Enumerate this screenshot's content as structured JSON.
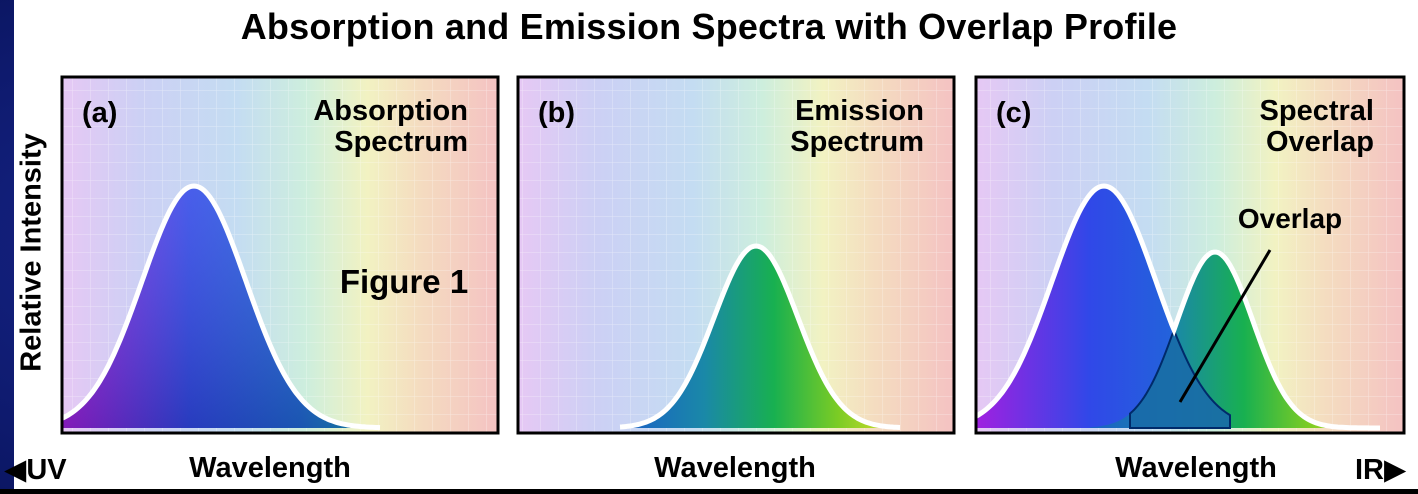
{
  "title": "Absorption and Emission Spectra with Overlap Profile",
  "y_axis_label": "Relative Intensity",
  "x_axis_label": "Wavelength",
  "left_edge": {
    "arrow": "◀",
    "label": "UV"
  },
  "right_edge": {
    "label": "IR",
    "arrow": "▶"
  },
  "panels": [
    {
      "letter": "(a)",
      "title": [
        "Absorption",
        "Spectrum"
      ],
      "note": "Figure 1"
    },
    {
      "letter": "(b)",
      "title": [
        "Emission",
        "Spectrum"
      ]
    },
    {
      "letter": "(c)",
      "title": [
        "Spectral",
        "Overlap"
      ],
      "callout": "Overlap"
    }
  ],
  "colors": {
    "background_frame": "#0a1a8a",
    "panel_border": "#000000",
    "text": "#000000",
    "curve_outline": "#ffffff",
    "absorption_fill": [
      "#8a1ee0",
      "#2a4fe0",
      "#1a8cc8"
    ],
    "emission_fill": [
      "#1a6ac8",
      "#18b060",
      "#7ad02a",
      "#d0e030"
    ],
    "overlap_fill": "#1a7ab0"
  }
}
